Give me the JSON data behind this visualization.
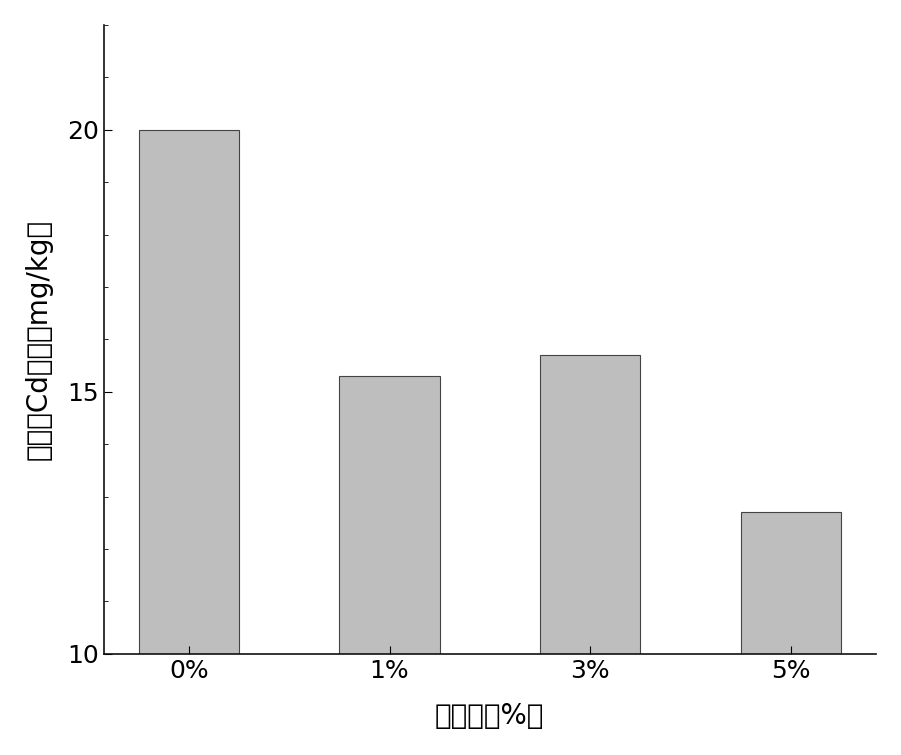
{
  "categories": [
    "0%",
    "1%",
    "3%",
    "5%"
  ],
  "values": [
    20.0,
    15.3,
    15.7,
    12.7
  ],
  "bar_color": "#bebebe",
  "bar_edgecolor": "#444444",
  "xlabel": "添加量（%）",
  "ylabel": "有效态Cd含量（mg/kg）",
  "ylim": [
    10,
    22
  ],
  "yticks": [
    10,
    15,
    20
  ],
  "xlabel_fontsize": 20,
  "ylabel_fontsize": 20,
  "tick_fontsize": 18,
  "bar_width": 0.5,
  "background_color": "#ffffff"
}
